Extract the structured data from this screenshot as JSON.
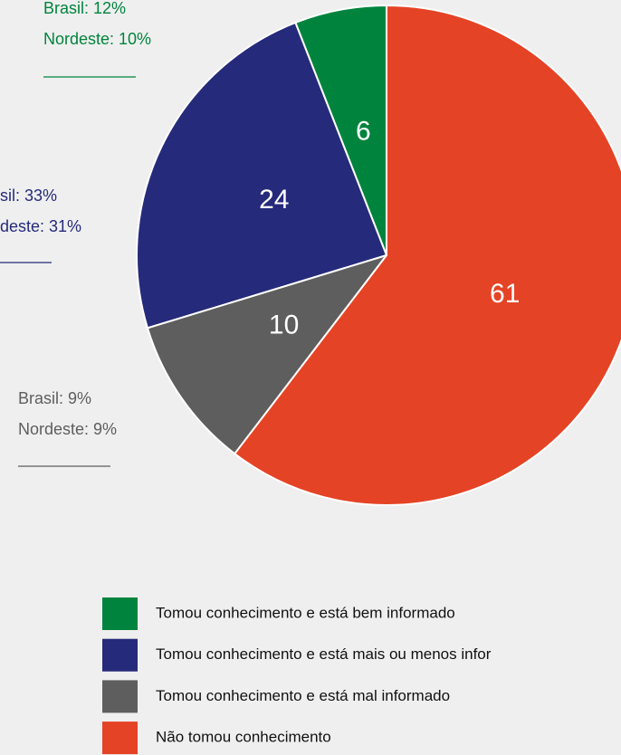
{
  "chart_data": {
    "type": "pie",
    "categories": [
      "Tomou conhecimento e está bem informado",
      "Tomou conhecimento e está mais ou menos infor",
      "Tomou conhecimento e está mal informado",
      "Não tomou conhecimento"
    ],
    "values": [
      6,
      24,
      10,
      61
    ],
    "colors": [
      "#00843d",
      "#262a7b",
      "#5e5e5e",
      "#e54325"
    ],
    "annotations": [
      {
        "lines": [
          "Brasil: 12%",
          "Nordeste: 10%"
        ],
        "color": "#00843d"
      },
      {
        "lines": [
          "sil: 33%",
          "deste: 31%"
        ],
        "color": "#262a7b"
      },
      {
        "lines": [
          "Brasil: 9%",
          "Nordeste: 9%"
        ],
        "color": "#5e5e5e"
      }
    ]
  }
}
